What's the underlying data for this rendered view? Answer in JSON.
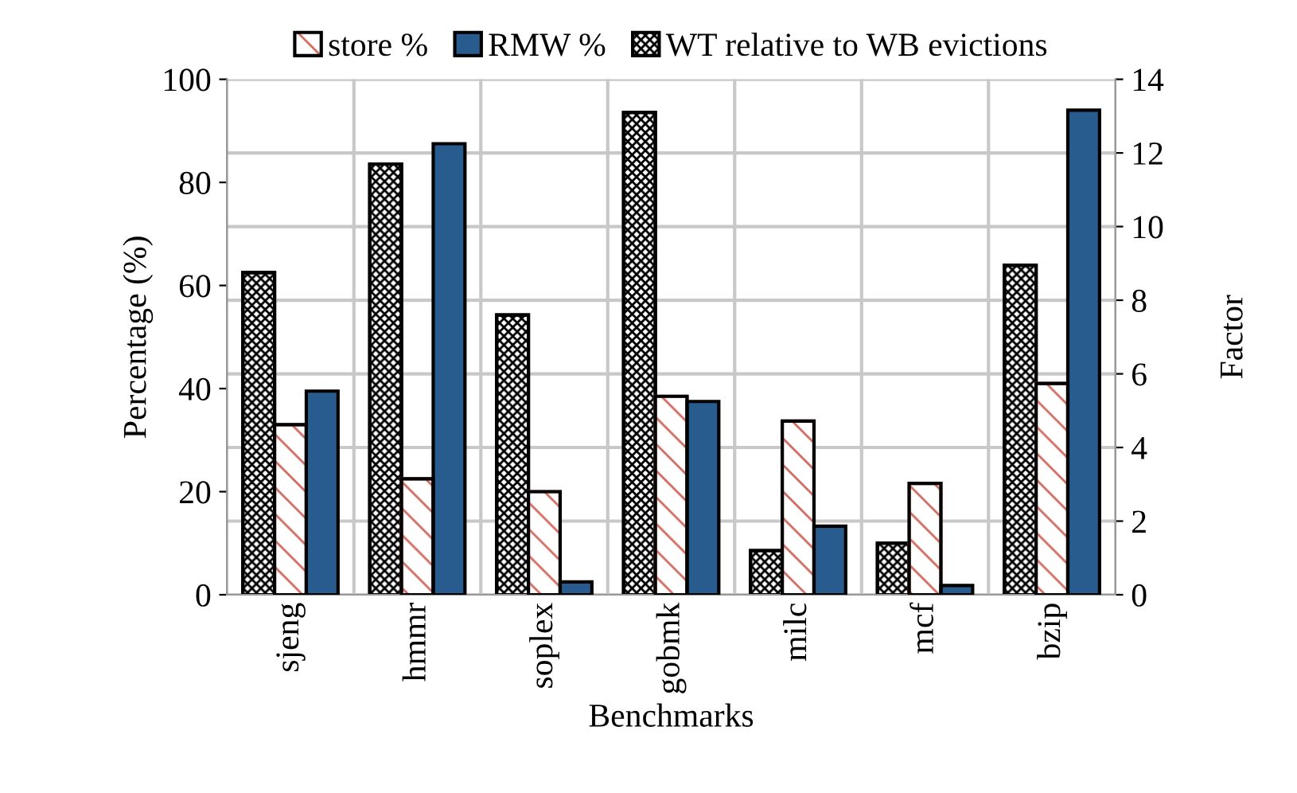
{
  "chart_data": {
    "type": "bar",
    "xlabel": "Benchmarks",
    "ylabel": "Percentage (%)",
    "y2label": "Factor",
    "categories": [
      "sjeng",
      "hmmr",
      "soplex",
      "gobmk",
      "milc",
      "mcf",
      "bzip"
    ],
    "series": [
      {
        "name": "WT relative to WB evictions",
        "color": "#000000",
        "axis": "y2",
        "values": [
          8.75,
          11.7,
          7.6,
          13.1,
          1.2,
          1.4,
          8.95
        ]
      },
      {
        "name": "store %",
        "color": "#d06a5e",
        "values": [
          33,
          22.5,
          20,
          38.5,
          33.7,
          21.6,
          41
        ]
      },
      {
        "name": "RMW %",
        "color": "#285c8e",
        "values": [
          39.5,
          87.5,
          2.5,
          37.5,
          13.3,
          1.8,
          94
        ]
      }
    ],
    "ylim": [
      0,
      100
    ],
    "yticks": [
      0,
      20,
      40,
      60,
      80,
      100
    ],
    "y2lim": [
      0,
      14
    ],
    "y2ticks": [
      0,
      2,
      4,
      6,
      8,
      10,
      12,
      14
    ],
    "grid": true,
    "legend": "top"
  }
}
